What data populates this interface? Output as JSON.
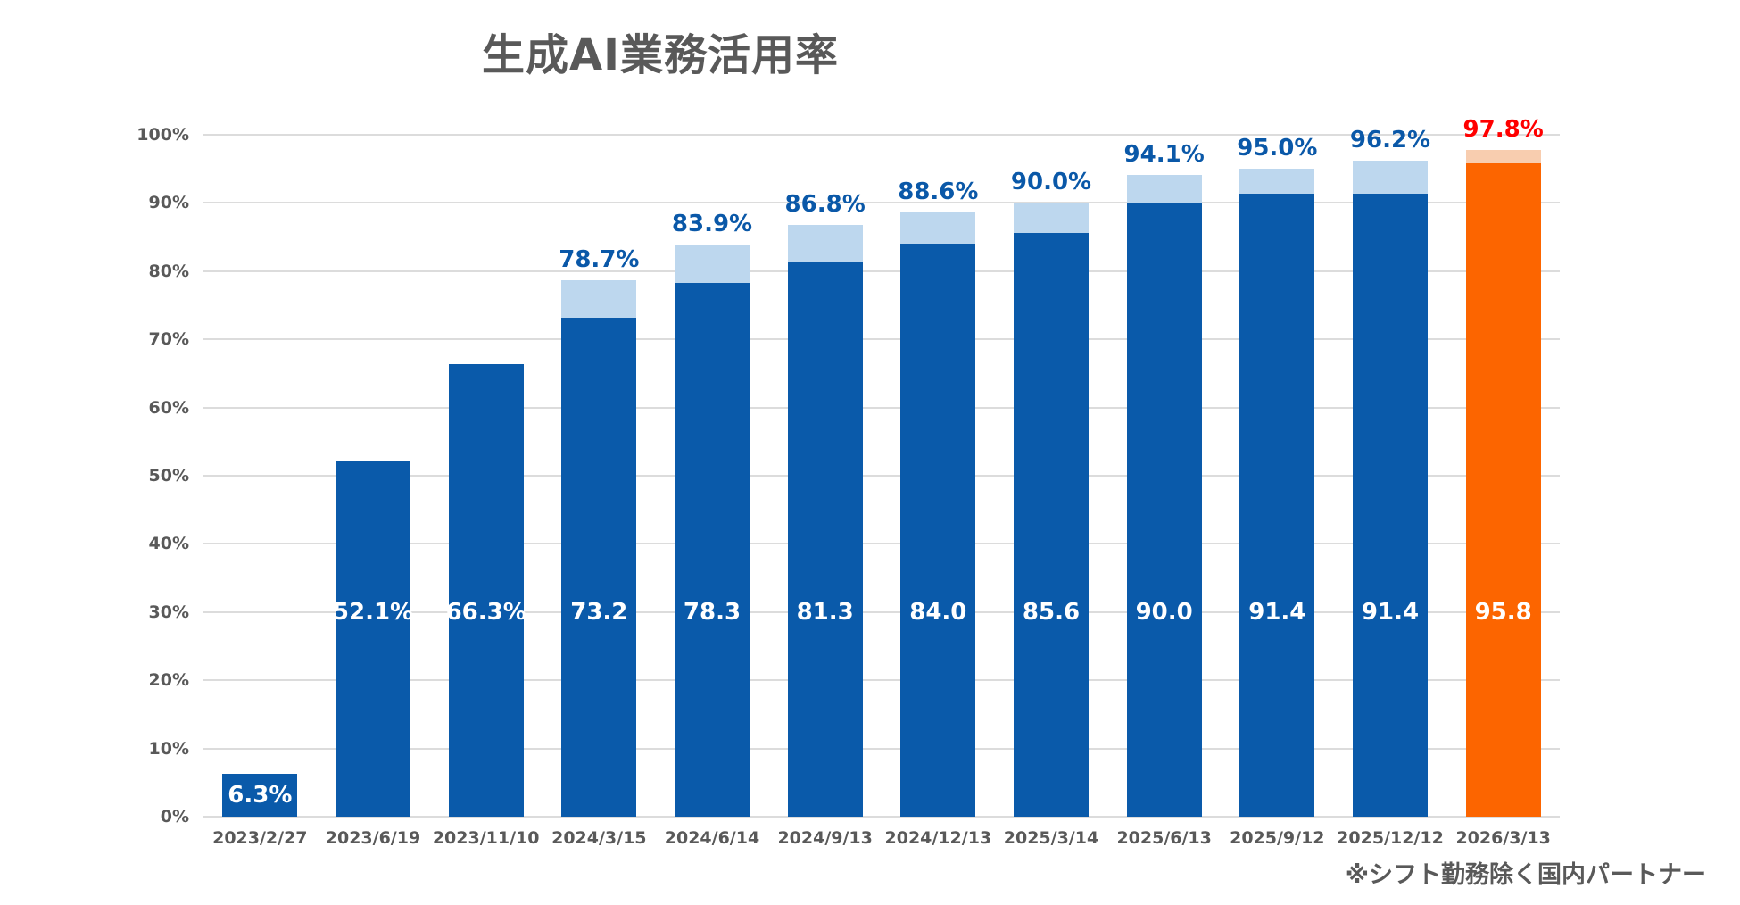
{
  "title": "生成AI業務活用率",
  "footnote": "※シフト勤務除く国内パートナー",
  "chart_data": {
    "type": "bar",
    "stacked": true,
    "title": "生成AI業務活用率",
    "xlabel": "",
    "ylabel": "",
    "ylim": [
      0,
      100
    ],
    "grid": true,
    "legend": "none",
    "y_tick_labels": [
      "0%",
      "10%",
      "20%",
      "30%",
      "40%",
      "50%",
      "60%",
      "70%",
      "80%",
      "90%",
      "100%"
    ],
    "categories": [
      "2023/2/27",
      "2023/6/19",
      "2023/11/10",
      "2024/3/15",
      "2024/6/14",
      "2024/9/13",
      "2024/12/13",
      "2025/3/14",
      "2025/6/13",
      "2025/9/12",
      "2025/12/12",
      "2026/3/13"
    ],
    "series": [
      {
        "name": "base-utilization",
        "values": [
          6.3,
          52.1,
          66.3,
          73.2,
          78.3,
          81.3,
          84.0,
          85.6,
          90.0,
          91.4,
          91.4,
          95.8
        ]
      },
      {
        "name": "increment-to-total",
        "values": [
          0,
          0,
          0,
          5.5,
          5.6,
          5.5,
          4.6,
          4.4,
          4.1,
          3.6,
          4.8,
          2.0
        ]
      }
    ],
    "bars": [
      {
        "category": "2023/2/27",
        "main": 6.3,
        "total": 6.3,
        "main_label": "6.3%",
        "total_label": "",
        "highlight": false
      },
      {
        "category": "2023/6/19",
        "main": 52.1,
        "total": 52.1,
        "main_label": "52.1%",
        "total_label": "",
        "highlight": false
      },
      {
        "category": "2023/11/10",
        "main": 66.3,
        "total": 66.3,
        "main_label": "66.3%",
        "total_label": "",
        "highlight": false
      },
      {
        "category": "2024/3/15",
        "main": 73.2,
        "total": 78.7,
        "main_label": "73.2",
        "total_label": "78.7%",
        "highlight": false
      },
      {
        "category": "2024/6/14",
        "main": 78.3,
        "total": 83.9,
        "main_label": "78.3",
        "total_label": "83.9%",
        "highlight": false
      },
      {
        "category": "2024/9/13",
        "main": 81.3,
        "total": 86.8,
        "main_label": "81.3",
        "total_label": "86.8%",
        "highlight": false
      },
      {
        "category": "2024/12/13",
        "main": 84.0,
        "total": 88.6,
        "main_label": "84.0",
        "total_label": "88.6%",
        "highlight": false
      },
      {
        "category": "2025/3/14",
        "main": 85.6,
        "total": 90.0,
        "main_label": "85.6",
        "total_label": "90.0%",
        "highlight": false
      },
      {
        "category": "2025/6/13",
        "main": 90.0,
        "total": 94.1,
        "main_label": "90.0",
        "total_label": "94.1%",
        "highlight": false
      },
      {
        "category": "2025/9/12",
        "main": 91.4,
        "total": 95.0,
        "main_label": "91.4",
        "total_label": "95.0%",
        "highlight": false
      },
      {
        "category": "2025/12/12",
        "main": 91.4,
        "total": 96.2,
        "main_label": "91.4",
        "total_label": "96.2%",
        "highlight": false
      },
      {
        "category": "2026/3/13",
        "main": 95.8,
        "total": 97.8,
        "main_label": "95.8",
        "total_label": "97.8%",
        "highlight": true
      }
    ],
    "colors": {
      "bar_main": "#0A5AAA",
      "bar_cap": "#BDD7EE",
      "highlight_main": "#FC6500",
      "highlight_cap": "#F8CDAF",
      "in_bar_label": "#FFFFFF",
      "total_label": "#0A58A8",
      "highlight_total_label": "#FF0000",
      "axis_text": "#595959",
      "gridline": "#DCDCDC",
      "title_color": "#595959"
    }
  }
}
